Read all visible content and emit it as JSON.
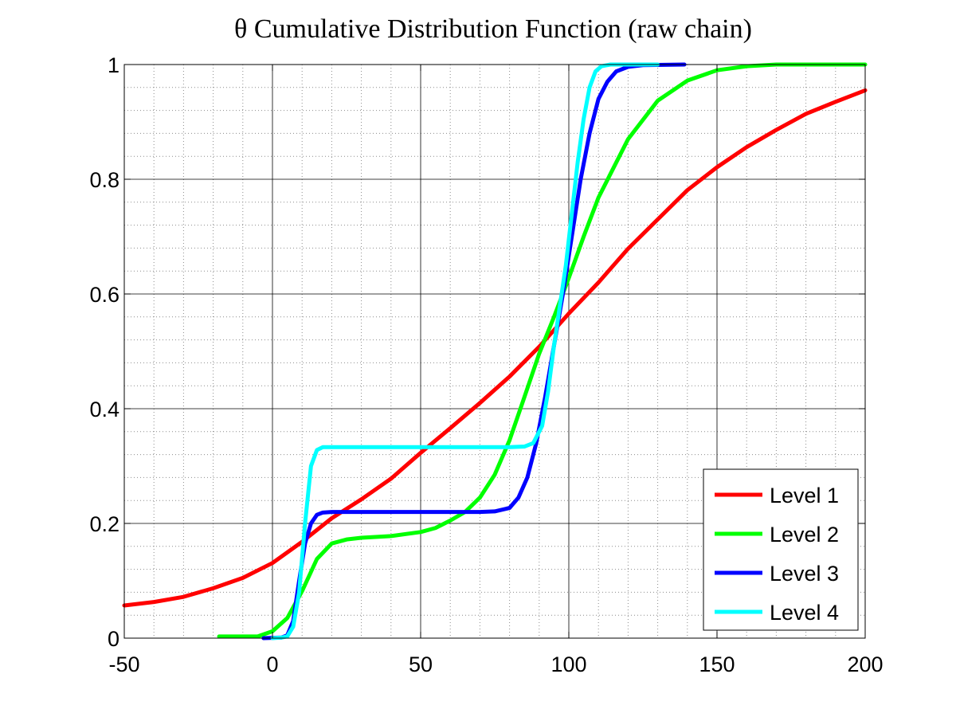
{
  "chart_data": {
    "type": "line",
    "title": "θ Cumulative Distribution Function (raw chain)",
    "xlabel": "",
    "ylabel": "",
    "xlim": [
      -50,
      200
    ],
    "ylim": [
      0,
      1
    ],
    "x_ticks": [
      -50,
      0,
      50,
      100,
      150,
      200
    ],
    "y_ticks": [
      0,
      0.2,
      0.4,
      0.6,
      0.8,
      1
    ],
    "x_tick_labels": [
      "-50",
      "0",
      "50",
      "100",
      "150",
      "200"
    ],
    "y_tick_labels": [
      "0",
      "0.2",
      "0.4",
      "0.6",
      "0.8",
      "1"
    ],
    "grid": true,
    "minor_grid": true,
    "legend_position": "bottom-right",
    "series": [
      {
        "name": "Level 1",
        "color": "#ff0000",
        "points": [
          [
            -50,
            0.057
          ],
          [
            -40,
            0.063
          ],
          [
            -30,
            0.072
          ],
          [
            -20,
            0.087
          ],
          [
            -10,
            0.105
          ],
          [
            0,
            0.131
          ],
          [
            10,
            0.168
          ],
          [
            20,
            0.209
          ],
          [
            30,
            0.242
          ],
          [
            40,
            0.278
          ],
          [
            50,
            0.323
          ],
          [
            60,
            0.366
          ],
          [
            70,
            0.41
          ],
          [
            80,
            0.456
          ],
          [
            90,
            0.508
          ],
          [
            100,
            0.566
          ],
          [
            110,
            0.62
          ],
          [
            120,
            0.679
          ],
          [
            130,
            0.73
          ],
          [
            140,
            0.781
          ],
          [
            150,
            0.821
          ],
          [
            160,
            0.856
          ],
          [
            170,
            0.886
          ],
          [
            180,
            0.914
          ],
          [
            190,
            0.935
          ],
          [
            200,
            0.955
          ]
        ]
      },
      {
        "name": "Level 2",
        "color": "#00ff00",
        "points": [
          [
            -18,
            0.003
          ],
          [
            -5,
            0.003
          ],
          [
            0,
            0.012
          ],
          [
            5,
            0.035
          ],
          [
            10,
            0.082
          ],
          [
            15,
            0.138
          ],
          [
            20,
            0.165
          ],
          [
            25,
            0.172
          ],
          [
            30,
            0.175
          ],
          [
            40,
            0.178
          ],
          [
            50,
            0.185
          ],
          [
            55,
            0.192
          ],
          [
            60,
            0.205
          ],
          [
            65,
            0.22
          ],
          [
            70,
            0.245
          ],
          [
            75,
            0.285
          ],
          [
            80,
            0.345
          ],
          [
            85,
            0.42
          ],
          [
            90,
            0.496
          ],
          [
            95,
            0.56
          ],
          [
            100,
            0.628
          ],
          [
            105,
            0.7
          ],
          [
            110,
            0.768
          ],
          [
            120,
            0.87
          ],
          [
            130,
            0.937
          ],
          [
            140,
            0.972
          ],
          [
            150,
            0.99
          ],
          [
            160,
            0.997
          ],
          [
            170,
            1.0
          ],
          [
            200,
            1.0
          ]
        ]
      },
      {
        "name": "Level 3",
        "color": "#0000ff",
        "points": [
          [
            -3,
            0.0
          ],
          [
            3,
            0.001
          ],
          [
            5,
            0.005
          ],
          [
            7,
            0.03
          ],
          [
            9,
            0.1
          ],
          [
            11,
            0.165
          ],
          [
            13,
            0.2
          ],
          [
            15,
            0.215
          ],
          [
            17,
            0.219
          ],
          [
            20,
            0.22
          ],
          [
            30,
            0.22
          ],
          [
            50,
            0.22
          ],
          [
            70,
            0.22
          ],
          [
            75,
            0.221
          ],
          [
            80,
            0.227
          ],
          [
            83,
            0.245
          ],
          [
            86,
            0.28
          ],
          [
            89,
            0.34
          ],
          [
            92,
            0.42
          ],
          [
            95,
            0.51
          ],
          [
            98,
            0.6
          ],
          [
            101,
            0.7
          ],
          [
            104,
            0.8
          ],
          [
            107,
            0.88
          ],
          [
            110,
            0.94
          ],
          [
            113,
            0.97
          ],
          [
            116,
            0.988
          ],
          [
            120,
            0.996
          ],
          [
            125,
            0.999
          ],
          [
            139,
            1.0
          ]
        ]
      },
      {
        "name": "Level 4",
        "color": "#00ffff",
        "points": [
          [
            0,
            0.0
          ],
          [
            3,
            0.001
          ],
          [
            5,
            0.003
          ],
          [
            7,
            0.02
          ],
          [
            9,
            0.08
          ],
          [
            11,
            0.2
          ],
          [
            13,
            0.3
          ],
          [
            15,
            0.328
          ],
          [
            17,
            0.333
          ],
          [
            20,
            0.333
          ],
          [
            50,
            0.333
          ],
          [
            80,
            0.333
          ],
          [
            85,
            0.334
          ],
          [
            88,
            0.34
          ],
          [
            91,
            0.37
          ],
          [
            93,
            0.43
          ],
          [
            95,
            0.51
          ],
          [
            97,
            0.58
          ],
          [
            99,
            0.65
          ],
          [
            101,
            0.74
          ],
          [
            103,
            0.83
          ],
          [
            105,
            0.905
          ],
          [
            107,
            0.96
          ],
          [
            109,
            0.988
          ],
          [
            111,
            0.997
          ],
          [
            114,
            1.0
          ],
          [
            130,
            1.0
          ]
        ]
      }
    ]
  }
}
